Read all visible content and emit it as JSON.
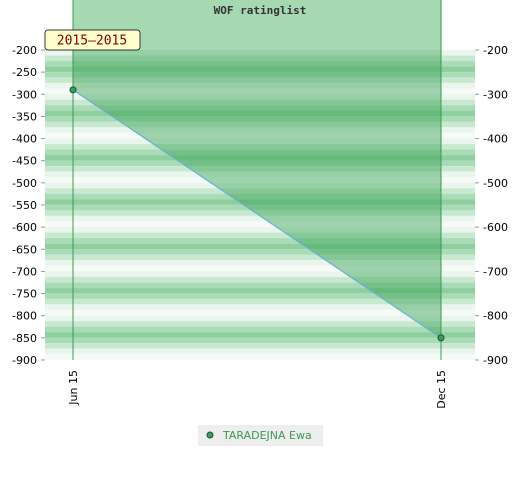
{
  "chart_data": {
    "type": "line",
    "title": "WOF ratinglist",
    "annotation": "2015–2015",
    "categories": [
      "Jun 15",
      "Dec 15"
    ],
    "series": [
      {
        "name": "TARADEJNA Ewa",
        "color": "#6aaed6",
        "values": [
          -290,
          -850
        ]
      }
    ],
    "ylim": [
      -900,
      -200
    ],
    "yticks": [
      -200,
      -250,
      -300,
      -350,
      -400,
      -450,
      -500,
      -550,
      -600,
      -650,
      -700,
      -750,
      -800,
      -850,
      -900
    ],
    "y2lim": [
      -900,
      -200
    ],
    "y2ticks": [
      -200,
      -300,
      -400,
      -500,
      -600,
      -700,
      -800,
      -900
    ]
  }
}
